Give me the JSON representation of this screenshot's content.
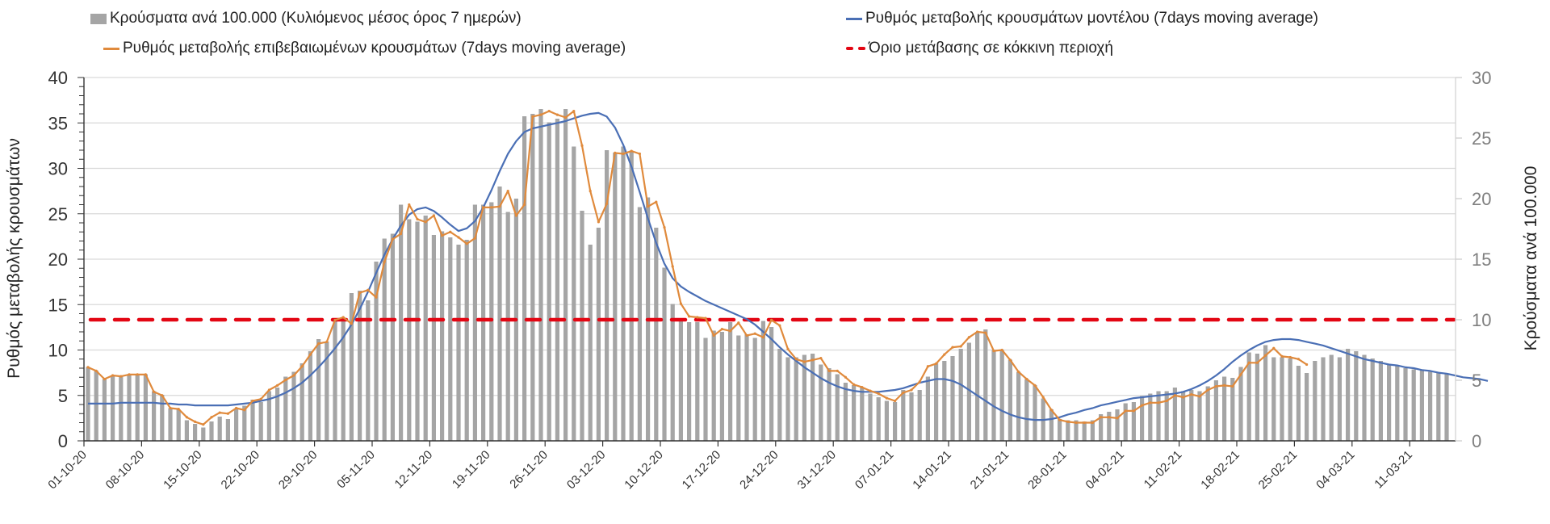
{
  "legend": {
    "bars": "Κρούσματα ανά 100.000 (Κυλιόμενος μέσος όρος 7 ημερών)",
    "orange": "Ρυθμός μεταβολής επιβεβαιωμένων κρουσμάτων (7days moving average)",
    "blue": "Ρυθμός μεταβολής κρουσμάτων μοντέλου (7days moving average)",
    "red": "Όριο μετάβασης σε κόκκινη περιοχή"
  },
  "chart_data": {
    "type": "bar+line",
    "title": "",
    "ylabel_left": "Ρυθμός μεταβολής κρουσμάτων",
    "ylabel_right": "Κρούσματα ανά 100.000",
    "ylim_left": [
      0,
      40
    ],
    "ylim_right": [
      0,
      30
    ],
    "yticks_left": [
      "0",
      "5",
      "10",
      "15",
      "20",
      "25",
      "30",
      "35",
      "40"
    ],
    "yticks_right": [
      "0",
      "5",
      "10",
      "15",
      "20",
      "25",
      "30"
    ],
    "xtick_labels": [
      "01-10-20",
      "08-10-20",
      "15-10-20",
      "22-10-20",
      "29-10-20",
      "05-11-20",
      "12-11-20",
      "19-11-20",
      "26-11-20",
      "03-12-20",
      "10-12-20",
      "17-12-20",
      "24-12-20",
      "31-12-20",
      "07-01-21",
      "14-01-21",
      "21-01-21",
      "28-01-21",
      "04-02-21",
      "11-02-21",
      "18-02-21",
      "25-02-21",
      "04-03-21",
      "11-03-21"
    ],
    "grid": true,
    "legend_position": "top",
    "colors": {
      "bars": "#a5a5a5",
      "orange": "#e08a3c",
      "blue": "#4a6fb5",
      "red": "#e30613"
    },
    "red_threshold_right": 10,
    "series": [
      {
        "name": "Κρούσματα ανά 100.000 (Κυλιόμενος μέσος όρος 7 ημερών)",
        "axis": "right",
        "type": "bar",
        "values": [
          6.1,
          5.8,
          5.1,
          5.4,
          5.3,
          5.5,
          5.5,
          5.5,
          4.1,
          3.8,
          2.7,
          2.6,
          1.7,
          1.4,
          1.1,
          1.6,
          2.0,
          1.8,
          2.6,
          2.9,
          3.4,
          3.2,
          4.1,
          4.4,
          5.3,
          5.7,
          6.4,
          7.4,
          8.4,
          8.2,
          10.0,
          10.2,
          12.2,
          12.4,
          11.6,
          14.8,
          16.7,
          17.1,
          19.5,
          18.3,
          18.1,
          18.6,
          17.0,
          17.3,
          16.8,
          16.2,
          16.6,
          19.5,
          19.5,
          19.7,
          21.0,
          18.9,
          20.0,
          26.8,
          27.0,
          27.4,
          26.3,
          26.6,
          27.4,
          24.3,
          19.0,
          16.2,
          17.6,
          24.0,
          23.8,
          24.3,
          23.9,
          19.3,
          20.1,
          17.6,
          14.3,
          11.3,
          10.0,
          9.8,
          9.8,
          8.5,
          9.1,
          9.0,
          9.8,
          8.7,
          8.8,
          8.5,
          9.9,
          9.4,
          7.6,
          6.9,
          6.9,
          7.1,
          7.2,
          6.3,
          6.0,
          5.5,
          4.8,
          4.6,
          4.4,
          3.9,
          3.6,
          3.3,
          3.2,
          4.2,
          4.0,
          4.2,
          5.3,
          6.4,
          6.6,
          7.0,
          7.6,
          8.1,
          9.0,
          9.2,
          7.5,
          7.5,
          6.7,
          5.7,
          5.1,
          4.6,
          3.5,
          2.6,
          1.8,
          1.7,
          1.7,
          1.6,
          1.7,
          2.2,
          2.4,
          2.6,
          3.1,
          3.2,
          3.7,
          3.9,
          4.1,
          4.1,
          4.4,
          4.1,
          4.2,
          4.1,
          4.5,
          5.0,
          5.3,
          5.2,
          6.1,
          7.3,
          7.2,
          7.9,
          6.9,
          6.9,
          6.8,
          6.2,
          5.6,
          6.6,
          6.9,
          7.1,
          6.9,
          7.6,
          7.4,
          7.1,
          6.8,
          6.6,
          6.3,
          6.2,
          6.0,
          5.9,
          5.8,
          5.7,
          5.6,
          5.5,
          5.4,
          5.3,
          5.2,
          5.1,
          5.0
        ]
      },
      {
        "name": "Ρυθμός μεταβολής επιβεβαιωμένων κρουσμάτων (7days moving average)",
        "axis": "left",
        "type": "line",
        "values": [
          8.1,
          7.7,
          6.8,
          7.2,
          7.1,
          7.3,
          7.3,
          7.3,
          5.4,
          5.0,
          3.6,
          3.5,
          2.6,
          2.1,
          1.8,
          2.6,
          3.1,
          3.0,
          3.6,
          3.4,
          4.4,
          4.6,
          5.6,
          6.1,
          6.7,
          7.2,
          8.2,
          9.5,
          10.7,
          10.9,
          13.3,
          13.6,
          12.9,
          16.3,
          16.6,
          15.8,
          19.7,
          22.2,
          22.8,
          26.0,
          24.4,
          24.1,
          24.8,
          22.6,
          23.0,
          22.4,
          21.7,
          22.3,
          25.7,
          25.7,
          25.8,
          27.5,
          24.8,
          26.0,
          35.7,
          35.9,
          36.3,
          35.9,
          35.6,
          36.3,
          32.5,
          27.5,
          24.1,
          26.1,
          31.7,
          31.6,
          31.9,
          31.6,
          25.8,
          26.3,
          23.5,
          19.2,
          15.1,
          13.7,
          13.6,
          13.5,
          11.6,
          12.3,
          12.1,
          13.0,
          11.6,
          11.8,
          11.4,
          13.3,
          12.7,
          10.1,
          9.0,
          8.7,
          8.9,
          9.1,
          7.7,
          7.7,
          7.0,
          6.2,
          5.9,
          5.5,
          5.2,
          4.7,
          4.4,
          5.3,
          5.6,
          6.5,
          8.2,
          8.5,
          9.5,
          10.3,
          10.4,
          11.4,
          12.0,
          11.9,
          9.9,
          10.0,
          8.9,
          7.6,
          6.8,
          6.1,
          4.8,
          3.4,
          2.3,
          2.1,
          2.0,
          2.0,
          2.0,
          2.6,
          2.6,
          2.5,
          3.3,
          3.3,
          3.9,
          4.2,
          4.2,
          4.4,
          5.0,
          4.8,
          5.1,
          4.9,
          5.6,
          6.0,
          6.1,
          6.0,
          7.3,
          8.6,
          8.6,
          9.4,
          10.2,
          9.3,
          9.2,
          9.0,
          8.4
        ]
      },
      {
        "name": "Ρυθμός μεταβολής κρουσμάτων μοντέλου (7days moving average)",
        "axis": "left",
        "type": "line",
        "values": [
          4.1,
          4.1,
          4.1,
          4.1,
          4.2,
          4.2,
          4.2,
          4.2,
          4.2,
          4.1,
          4.1,
          4.0,
          4.0,
          3.9,
          3.9,
          3.9,
          3.9,
          3.9,
          4.0,
          4.1,
          4.2,
          4.4,
          4.6,
          4.9,
          5.3,
          5.8,
          6.4,
          7.2,
          8.1,
          9.1,
          10.2,
          11.4,
          12.8,
          14.5,
          16.4,
          18.5,
          20.5,
          22.2,
          23.7,
          24.9,
          25.5,
          25.7,
          25.3,
          24.6,
          23.8,
          23.1,
          23.4,
          24.2,
          25.7,
          27.6,
          29.7,
          31.6,
          33.0,
          34.0,
          34.4,
          34.6,
          34.8,
          35.0,
          35.2,
          35.5,
          35.8,
          36.0,
          36.1,
          35.7,
          34.5,
          32.6,
          30.2,
          27.4,
          24.5,
          21.8,
          19.5,
          17.9,
          17.0,
          16.4,
          15.9,
          15.4,
          15.0,
          14.6,
          14.2,
          13.8,
          13.4,
          12.8,
          12.0,
          11.2,
          10.3,
          9.5,
          8.8,
          8.1,
          7.5,
          6.9,
          6.4,
          6.0,
          5.7,
          5.5,
          5.4,
          5.4,
          5.4,
          5.5,
          5.6,
          5.8,
          6.1,
          6.4,
          6.6,
          6.8,
          6.8,
          6.6,
          6.2,
          5.6,
          5.0,
          4.4,
          3.8,
          3.3,
          2.9,
          2.6,
          2.4,
          2.3,
          2.3,
          2.4,
          2.6,
          2.9,
          3.1,
          3.4,
          3.6,
          3.9,
          4.1,
          4.3,
          4.5,
          4.7,
          4.8,
          4.9,
          5.0,
          5.1,
          5.2,
          5.4,
          5.7,
          6.1,
          6.6,
          7.2,
          7.9,
          8.7,
          9.4,
          10.0,
          10.5,
          10.9,
          11.1,
          11.2,
          11.2,
          11.1,
          10.9,
          10.7,
          10.5,
          10.2,
          9.9,
          9.6,
          9.3,
          9.0,
          8.8,
          8.6,
          8.4,
          8.3,
          8.1,
          8.0,
          7.8,
          7.7,
          7.5,
          7.4,
          7.2,
          7.0,
          6.9,
          6.8,
          6.6
        ]
      }
    ]
  }
}
